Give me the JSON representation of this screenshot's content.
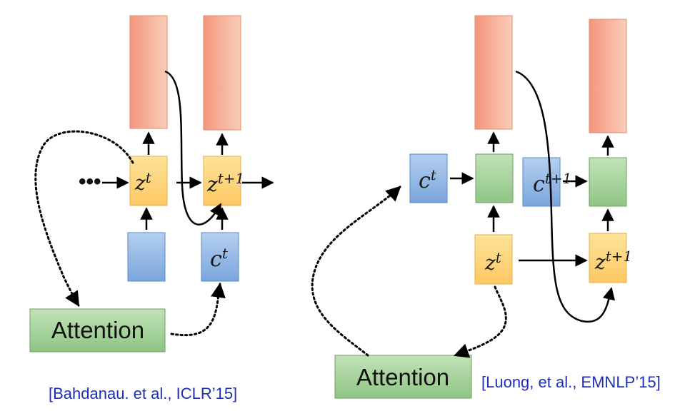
{
  "left": {
    "z_label": "z",
    "z_sup": "t",
    "z_next_label": "z",
    "z_next_sup": "t+1",
    "c_label": "c",
    "c_sup": "t",
    "attention_label": "Attention",
    "ellipsis": "•••",
    "citation": "[Bahdanau. et al., ICLR’15]"
  },
  "right": {
    "c_label": "c",
    "c_sup": "t",
    "c_next_label": "c",
    "c_next_sup": "t+1",
    "z_label": "z",
    "z_sup": "t",
    "z_next_label": "z",
    "z_next_sup": "t+1",
    "attention_label": "Attention",
    "citation": "[Luong, et al., EMNLP’15]"
  },
  "colors": {
    "output_from": "#f4967c",
    "output_to": "#f9cdb9",
    "output_border": "#e08b6d",
    "state_from": "#fddc86",
    "state_to": "#fec863",
    "state_border": "#e3b14a",
    "context_from": "#a7c5e9",
    "context_to": "#7da8dc",
    "context_border": "#5b88c2",
    "hidden_from": "#b8dcae",
    "hidden_to": "#8fc585",
    "hidden_border": "#6f9f62",
    "citation_text": "#1f2fb8"
  }
}
